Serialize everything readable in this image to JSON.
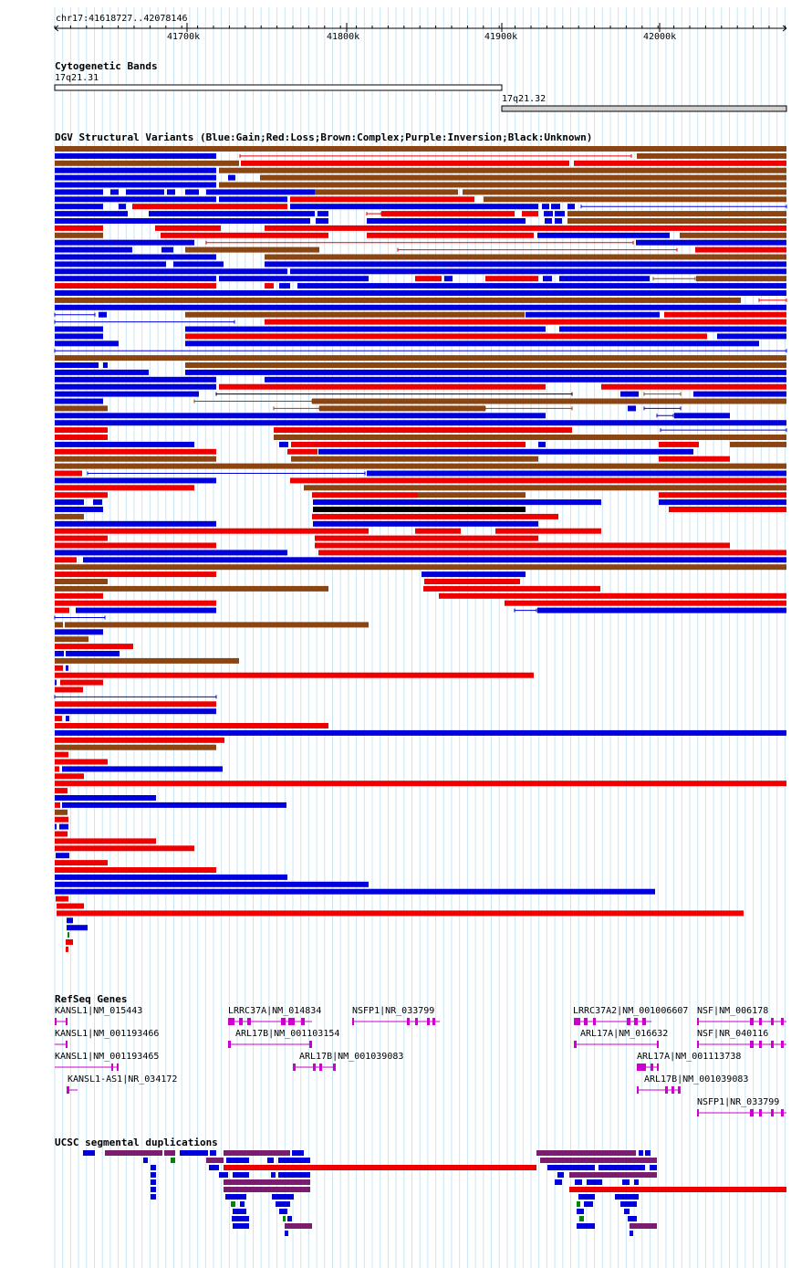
{
  "ruler": {
    "position_label": "chr17:41618727..42078146",
    "ticks": [
      {
        "label": "41700k",
        "bp": 41700000
      },
      {
        "label": "41800k",
        "bp": 41800000
      },
      {
        "label": "41900k",
        "bp": 41900000
      },
      {
        "label": "42000k",
        "bp": 42000000
      }
    ]
  },
  "cytobands": {
    "title": "Cytogenetic Bands",
    "bands": [
      {
        "name": "17q21.31",
        "start": 41618727,
        "end": 41900000,
        "stain": "gneg"
      },
      {
        "name": "17q21.32",
        "start": 41900000,
        "end": 42078146,
        "stain": "gpos25"
      }
    ]
  },
  "dgv": {
    "title": "DGV Structural Variants (Blue:Gain;Red:Loss;Brown:Complex;Purple:Inversion;Black:Unknown)",
    "colors": {
      "blue": "#0000dd",
      "red": "#ee0000",
      "brown": "#8b4513",
      "black": "#000000",
      "purple": "#800080"
    }
  },
  "refseq": {
    "title": "RefSeq Genes",
    "color": "#cc00cc",
    "genes": [
      {
        "name": "KANSL1|NM_015443"
      },
      {
        "name": "KANSL1|NM_001193466"
      },
      {
        "name": "KANSL1|NM_001193465"
      },
      {
        "name": "KANSL1-AS1|NR_034172"
      },
      {
        "name": "LRRC37A|NM_014834"
      },
      {
        "name": "ARL17B|NM_001103154"
      },
      {
        "name": "ARL17B|NM_001039083"
      },
      {
        "name": "NSFP1|NR_033799"
      },
      {
        "name": "LRRC37A2|NM_001006607"
      },
      {
        "name": "ARL17A|NM_016632"
      },
      {
        "name": "ARL17A|NM_001113738"
      },
      {
        "name": "ARL17B|NM_001039083"
      },
      {
        "name": "NSF|NM_006178"
      },
      {
        "name": "NSF|NR_040116"
      },
      {
        "name": "NSFP1|NR_033799"
      }
    ]
  },
  "segdups": {
    "title": "UCSC segmental duplications",
    "colors": {
      "blue": "#0000dd",
      "purple": "#7a1d6e",
      "red": "#ee0000",
      "green": "#008800"
    }
  }
}
